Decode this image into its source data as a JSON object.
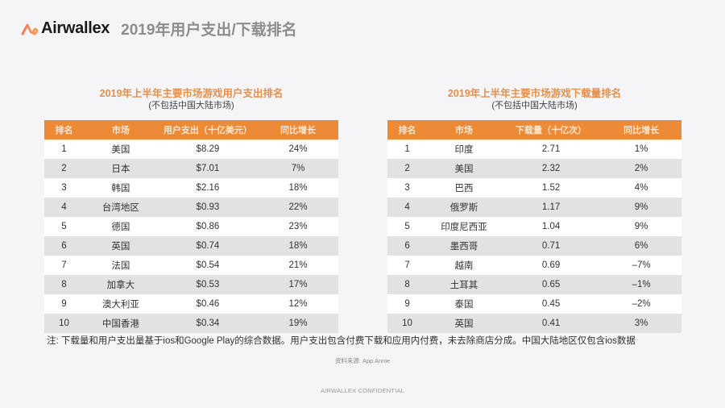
{
  "header": {
    "logo_text": "Airwallex",
    "title": "2019年用户支出/下载排名"
  },
  "spending": {
    "title": "2019年上半年主要市场游戏用户支出排名",
    "subtitle": "(不包括中国大陆市场)",
    "columns": [
      "排名",
      "市场",
      "用户支出（十亿美元）",
      "同比增长"
    ],
    "rows": [
      {
        "rank": "1",
        "market": "美国",
        "value": "$8.29",
        "yoy": "24%"
      },
      {
        "rank": "2",
        "market": "日本",
        "value": "$7.01",
        "yoy": "7%"
      },
      {
        "rank": "3",
        "market": "韩国",
        "value": "$2.16",
        "yoy": "18%"
      },
      {
        "rank": "4",
        "market": "台湾地区",
        "value": "$0.93",
        "yoy": "22%"
      },
      {
        "rank": "5",
        "market": "德国",
        "value": "$0.86",
        "yoy": "23%"
      },
      {
        "rank": "6",
        "market": "英国",
        "value": "$0.74",
        "yoy": "18%"
      },
      {
        "rank": "7",
        "market": "法国",
        "value": "$0.54",
        "yoy": "21%"
      },
      {
        "rank": "8",
        "market": "加拿大",
        "value": "$0.53",
        "yoy": "17%"
      },
      {
        "rank": "9",
        "market": "澳大利亚",
        "value": "$0.46",
        "yoy": "12%"
      },
      {
        "rank": "10",
        "market": "中国香港",
        "value": "$0.34",
        "yoy": "19%"
      }
    ]
  },
  "downloads": {
    "title": "2019年上半年主要市场游戏下载量排名",
    "subtitle": "(不包括中国大陆市场)",
    "columns": [
      "排名",
      "市场",
      "下载量（十亿次）",
      "同比增长"
    ],
    "rows": [
      {
        "rank": "1",
        "market": "印度",
        "value": "2.71",
        "yoy": "1%"
      },
      {
        "rank": "2",
        "market": "美国",
        "value": "2.32",
        "yoy": "2%"
      },
      {
        "rank": "3",
        "market": "巴西",
        "value": "1.52",
        "yoy": "4%"
      },
      {
        "rank": "4",
        "market": "俄罗斯",
        "value": "1.17",
        "yoy": "9%"
      },
      {
        "rank": "5",
        "market": "印度尼西亚",
        "value": "1.04",
        "yoy": "9%"
      },
      {
        "rank": "6",
        "market": "墨西哥",
        "value": "0.71",
        "yoy": "6%"
      },
      {
        "rank": "7",
        "market": "越南",
        "value": "0.69",
        "yoy": "–7%"
      },
      {
        "rank": "8",
        "market": "土耳其",
        "value": "0.65",
        "yoy": "–1%"
      },
      {
        "rank": "9",
        "market": "泰国",
        "value": "0.45",
        "yoy": "–2%"
      },
      {
        "rank": "10",
        "market": "英国",
        "value": "0.41",
        "yoy": "3%"
      }
    ]
  },
  "footer": {
    "note": "注: 下载量和用户支出量基于ios和Google Play的综合数据。用户支出包含付费下载和应用内付费，未去除商店分成。中国大陆地区仅包含ios数据",
    "source": "资料来源: App Annie",
    "confidential": "AIRWALLEX CONFIDENTIAL"
  },
  "colors": {
    "accent": "#ec8a35",
    "title_orange": "#e4904c",
    "row_alt": "#e2e2e4"
  }
}
